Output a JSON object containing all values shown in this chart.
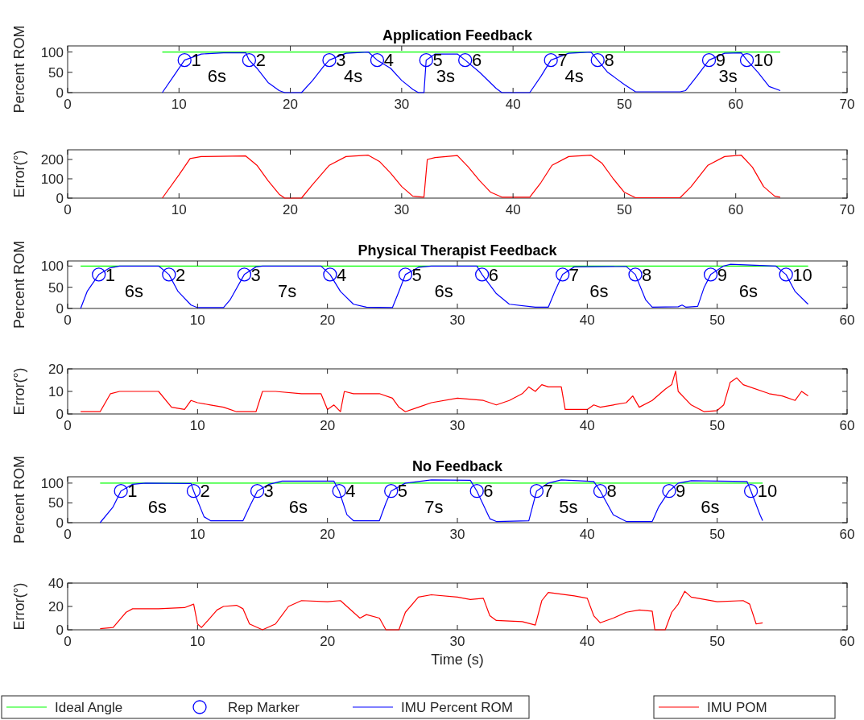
{
  "chart_data": [
    {
      "type": "line",
      "title": "Application Feedback",
      "ylabel": "Percent ROM",
      "xlim": [
        0,
        70
      ],
      "xticks": [
        0,
        10,
        20,
        30,
        40,
        50,
        60,
        70
      ],
      "ylim": [
        0,
        115
      ],
      "yticks": [
        0,
        50,
        100
      ],
      "series": [
        {
          "type": "line",
          "color": "#00ff00",
          "x": [
            8.5,
            64
          ],
          "values": [
            100,
            100
          ]
        },
        {
          "type": "scatter",
          "marker": "circle",
          "color": "#0000ff",
          "x": [
            10.5,
            16.3,
            23.5,
            27.8,
            32.2,
            35.7,
            43.4,
            47.6,
            57.6,
            61
          ],
          "values": [
            80,
            80,
            80,
            80,
            80,
            80,
            80,
            80,
            80,
            80
          ]
        },
        {
          "type": "line",
          "color": "#0000ff",
          "x": [
            8.5,
            9.5,
            10.5,
            12,
            14,
            16,
            16.3,
            17,
            18,
            19,
            19.5,
            21,
            22,
            23,
            23.5,
            25,
            27,
            27.8,
            29,
            30,
            31,
            31.5,
            32,
            32.2,
            33,
            35,
            35.7,
            37,
            38.5,
            39,
            41.5,
            42.5,
            43.4,
            45,
            47,
            47.6,
            48.5,
            50,
            51,
            55,
            55.5,
            56.5,
            57.6,
            59,
            60.5,
            61,
            62,
            63,
            64
          ],
          "values": [
            0,
            40,
            80,
            95,
            98,
            98,
            80,
            60,
            25,
            5,
            0,
            0,
            30,
            65,
            80,
            97,
            100,
            80,
            60,
            30,
            8,
            0,
            0,
            80,
            95,
            95,
            80,
            50,
            10,
            0,
            0,
            40,
            80,
            97,
            100,
            80,
            50,
            20,
            2,
            2,
            5,
            40,
            80,
            97,
            98,
            80,
            50,
            15,
            5
          ]
        }
      ],
      "annotations": [
        {
          "text": "1",
          "x": 11.1,
          "y": 80
        },
        {
          "text": "2",
          "x": 16.9,
          "y": 80
        },
        {
          "text": "3",
          "x": 24.1,
          "y": 80
        },
        {
          "text": "4",
          "x": 28.4,
          "y": 80
        },
        {
          "text": "5",
          "x": 32.8,
          "y": 80
        },
        {
          "text": "6",
          "x": 36.3,
          "y": 80
        },
        {
          "text": "7",
          "x": 44,
          "y": 80
        },
        {
          "text": "8",
          "x": 48.2,
          "y": 80
        },
        {
          "text": "9",
          "x": 58.2,
          "y": 80
        },
        {
          "text": "10",
          "x": 61.6,
          "y": 80
        },
        "6s",
        "4s",
        "3s",
        "4s",
        "3s"
      ]
    },
    {
      "type": "line",
      "ylabel": "Error(°)",
      "xlim": [
        0,
        70
      ],
      "xticks": [
        0,
        10,
        20,
        30,
        40,
        50,
        60,
        70
      ],
      "ylim": [
        0,
        250
      ],
      "yticks": [
        0,
        100,
        200
      ],
      "series": [
        {
          "type": "line",
          "color": "#ff0000",
          "x": [
            8.5,
            10,
            11,
            12,
            16,
            17,
            18,
            19,
            19.5,
            21,
            22,
            23.5,
            25,
            27,
            28,
            29,
            30,
            31,
            32,
            32.3,
            33,
            35,
            36,
            37,
            38,
            39,
            41.5,
            42.5,
            43.5,
            45,
            47,
            48,
            49,
            50,
            51,
            55,
            56,
            57.5,
            59,
            60.5,
            61.5,
            62.5,
            63.5,
            64
          ],
          "values": [
            0,
            120,
            205,
            215,
            218,
            170,
            90,
            20,
            0,
            0,
            70,
            170,
            215,
            222,
            190,
            130,
            60,
            10,
            5,
            200,
            210,
            220,
            160,
            90,
            30,
            5,
            5,
            80,
            170,
            215,
            222,
            180,
            100,
            30,
            2,
            2,
            60,
            170,
            215,
            222,
            160,
            60,
            10,
            5
          ]
        }
      ]
    },
    {
      "type": "line",
      "title": "Physical Therapist Feedback",
      "ylabel": "Percent ROM",
      "xlim": [
        0,
        60
      ],
      "xticks": [
        0,
        10,
        20,
        30,
        40,
        50,
        60
      ],
      "ylim": [
        0,
        112
      ],
      "yticks": [
        0,
        50,
        100
      ],
      "series": [
        {
          "type": "line",
          "color": "#00ff00",
          "x": [
            1,
            57
          ],
          "values": [
            100,
            100
          ]
        },
        {
          "type": "scatter",
          "marker": "circle",
          "color": "#0000ff",
          "x": [
            2.4,
            7.8,
            13.6,
            20.2,
            26,
            31.9,
            38.1,
            43.7,
            49.5,
            55.3
          ],
          "values": [
            80,
            80,
            80,
            80,
            80,
            80,
            80,
            80,
            80,
            80
          ]
        },
        {
          "type": "line",
          "color": "#0000ff",
          "x": [
            1,
            1.5,
            2.4,
            3.2,
            4,
            7,
            7.8,
            8.5,
            9.5,
            10,
            12,
            12.5,
            13.6,
            14.5,
            15,
            19.5,
            20.2,
            21,
            22,
            23,
            25,
            25.5,
            26,
            27,
            28,
            31.5,
            31.9,
            33,
            34,
            36,
            37,
            37.5,
            38.1,
            39,
            43,
            43.7,
            44.5,
            45,
            47,
            47.3,
            47.6,
            48.5,
            49,
            49.5,
            50.5,
            51,
            54.5,
            55.3,
            56,
            57
          ],
          "values": [
            0,
            40,
            80,
            95,
            100,
            100,
            80,
            40,
            8,
            2,
            2,
            20,
            80,
            98,
            100,
            100,
            80,
            40,
            10,
            3,
            2,
            40,
            80,
            97,
            100,
            100,
            80,
            35,
            10,
            3,
            3,
            40,
            80,
            98,
            99,
            80,
            20,
            3,
            4,
            8,
            3,
            5,
            50,
            80,
            100,
            104,
            100,
            80,
            40,
            10
          ]
        }
      ],
      "annotations": [
        {
          "text": "1",
          "x": 2.9,
          "y": 80
        },
        {
          "text": "2",
          "x": 8.3,
          "y": 80
        },
        {
          "text": "3",
          "x": 14.1,
          "y": 80
        },
        {
          "text": "4",
          "x": 20.7,
          "y": 80
        },
        {
          "text": "5",
          "x": 26.5,
          "y": 80
        },
        {
          "text": "6",
          "x": 32.4,
          "y": 80
        },
        {
          "text": "7",
          "x": 38.6,
          "y": 80
        },
        {
          "text": "8",
          "x": 44.2,
          "y": 80
        },
        {
          "text": "9",
          "x": 50,
          "y": 80
        },
        {
          "text": "10",
          "x": 55.8,
          "y": 80
        },
        "6s",
        "7s",
        "6s",
        "6s",
        "6s"
      ]
    },
    {
      "type": "line",
      "ylabel": "Error(°)",
      "xlim": [
        0,
        60
      ],
      "xticks": [
        0,
        10,
        20,
        30,
        40,
        50,
        60
      ],
      "ylim": [
        0,
        20
      ],
      "yticks": [
        0,
        10,
        20
      ],
      "series": [
        {
          "type": "line",
          "color": "#ff0000",
          "x": [
            1,
            2.5,
            3.3,
            4,
            6,
            7,
            8,
            9,
            9.5,
            10,
            11,
            12,
            13,
            14,
            14.5,
            15,
            16,
            18,
            19.5,
            20,
            20.5,
            21,
            21.3,
            22,
            24,
            25,
            25.5,
            26,
            27,
            28,
            30,
            32,
            33,
            34,
            35,
            35.5,
            36,
            36.5,
            37,
            38,
            38.3,
            39,
            40,
            40.5,
            41,
            42,
            43,
            43.5,
            44,
            45,
            46,
            46.5,
            46.8,
            47,
            48,
            49,
            50,
            50.5,
            51,
            51.5,
            52,
            54,
            55,
            56,
            56.5,
            57
          ],
          "values": [
            1,
            1,
            9,
            10,
            10,
            10,
            3,
            2,
            6,
            5,
            4,
            3,
            1,
            1,
            1,
            10,
            10,
            9,
            9,
            2,
            4,
            1,
            10,
            9,
            9,
            7,
            3,
            1,
            3,
            5,
            7,
            6,
            4,
            6,
            9,
            12,
            10,
            13,
            12,
            12,
            2,
            2,
            2,
            4,
            3,
            4,
            5,
            8,
            3,
            6,
            11,
            13,
            19,
            10,
            4,
            1,
            1.5,
            4,
            14,
            16,
            13,
            9,
            8,
            6,
            10,
            8
          ]
        }
      ]
    },
    {
      "type": "line",
      "title": "No Feedback",
      "ylabel": "Percent ROM",
      "xlim": [
        0,
        60
      ],
      "xticks": [
        0,
        10,
        20,
        30,
        40,
        50,
        60
      ],
      "ylim": [
        0,
        116
      ],
      "yticks": [
        0,
        50,
        100
      ],
      "legend": "bottom",
      "series": [
        {
          "type": "line",
          "name": "Ideal Angle",
          "color": "#00ff00",
          "x": [
            2.5,
            53.5
          ],
          "values": [
            100,
            100
          ]
        },
        {
          "type": "scatter",
          "name": "Rep Marker",
          "marker": "circle",
          "color": "#0000ff",
          "x": [
            4.1,
            9.7,
            14.6,
            20.9,
            24.9,
            31.5,
            36.1,
            41,
            46.3,
            52.6
          ],
          "values": [
            80,
            80,
            80,
            80,
            80,
            80,
            80,
            80,
            80,
            80
          ]
        },
        {
          "type": "line",
          "name": "IMU Percent ROM",
          "color": "#0000ff",
          "x": [
            2.5,
            3.5,
            4.1,
            5,
            6,
            9.5,
            9.7,
            10.5,
            11,
            13.5,
            14,
            14.6,
            15.5,
            16.5,
            20.5,
            20.9,
            21.5,
            22,
            24,
            24.5,
            24.9,
            26,
            28,
            31,
            31.5,
            32.5,
            33,
            35.5,
            36.1,
            37,
            38,
            40.5,
            41,
            42,
            43,
            45,
            45.5,
            46.3,
            47,
            48,
            52.3,
            52.6,
            53.3,
            53.5
          ],
          "values": [
            0,
            40,
            80,
            97,
            100,
            99,
            80,
            15,
            5,
            5,
            40,
            80,
            97,
            105,
            105,
            80,
            20,
            5,
            5,
            50,
            80,
            100,
            108,
            107,
            80,
            10,
            3,
            5,
            80,
            100,
            108,
            104,
            80,
            20,
            3,
            3,
            40,
            80,
            100,
            106,
            104,
            80,
            20,
            5
          ]
        }
      ],
      "annotations": [
        {
          "text": "1",
          "x": 4.6,
          "y": 80
        },
        {
          "text": "2",
          "x": 10.2,
          "y": 80
        },
        {
          "text": "3",
          "x": 15.1,
          "y": 80
        },
        {
          "text": "4",
          "x": 21.4,
          "y": 80
        },
        {
          "text": "5",
          "x": 25.4,
          "y": 80
        },
        {
          "text": "6",
          "x": 32,
          "y": 80
        },
        {
          "text": "7",
          "x": 36.6,
          "y": 80
        },
        {
          "text": "8",
          "x": 41.5,
          "y": 80
        },
        {
          "text": "9",
          "x": 46.8,
          "y": 80
        },
        {
          "text": "10",
          "x": 53.1,
          "y": 80
        },
        "6s",
        "6s",
        "7s",
        "5s",
        "6s"
      ]
    },
    {
      "type": "line",
      "ylabel": "Error(°)",
      "xlabel": "Time (s)",
      "xlim": [
        0,
        60
      ],
      "xticks": [
        0,
        10,
        20,
        30,
        40,
        50,
        60
      ],
      "ylim": [
        0,
        40
      ],
      "yticks": [
        0,
        20,
        40
      ],
      "legend": "bottom",
      "series": [
        {
          "type": "line",
          "name": "IMU POM",
          "color": "#ff0000",
          "x": [
            2.5,
            3.5,
            4.5,
            5,
            7,
            9,
            9.7,
            10,
            10.3,
            10.8,
            11.5,
            12,
            13,
            13.5,
            14,
            15,
            16,
            17,
            18,
            20,
            21,
            22,
            22.5,
            23,
            24,
            24.5,
            25.5,
            26,
            27,
            28,
            30,
            31,
            32,
            32.5,
            33,
            35,
            36,
            36.5,
            37,
            39,
            40,
            40.5,
            41,
            42,
            43,
            44,
            45,
            45.2,
            46,
            46.5,
            47,
            47.5,
            48,
            50,
            52,
            52.5,
            53,
            53.5
          ],
          "values": [
            1,
            2,
            15,
            18,
            18,
            19,
            22,
            5,
            2,
            8,
            17,
            20,
            21,
            18,
            5,
            0,
            5,
            20,
            25,
            24,
            25,
            15,
            10,
            13,
            10,
            0,
            0,
            15,
            28,
            30,
            28,
            26,
            27,
            12,
            8,
            7,
            4,
            25,
            32,
            29,
            27,
            12,
            6,
            10,
            15,
            17,
            16,
            0,
            0,
            15,
            22,
            33,
            28,
            24,
            25,
            22,
            5,
            6
          ]
        }
      ]
    }
  ]
}
